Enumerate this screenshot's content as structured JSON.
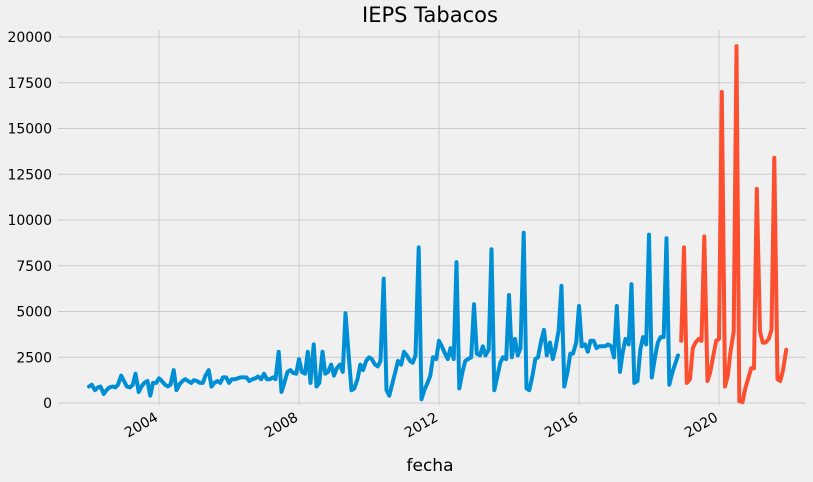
{
  "chart_data": {
    "type": "line",
    "title": "IEPS Tabacos",
    "xlabel": "fecha",
    "ylabel": "",
    "xlim": [
      2001.1,
      2021.9
    ],
    "ylim": [
      -1000,
      21000
    ],
    "x_ticks": [
      2004,
      2008,
      2012,
      2016,
      2020
    ],
    "y_ticks": [
      0,
      2500,
      5000,
      7500,
      10000,
      12500,
      15000,
      17500,
      20000
    ],
    "grid": true,
    "colors": {
      "background": "#f0f0f0",
      "grid": "#cbcbcb",
      "series_1": "#008fd5",
      "series_2": "#fc4f30"
    },
    "series": [
      {
        "name": "",
        "color": "#008fd5",
        "points": [
          [
            2002.0,
            900
          ],
          [
            2002.08,
            1000
          ],
          [
            2002.17,
            700
          ],
          [
            2002.25,
            850
          ],
          [
            2002.33,
            900
          ],
          [
            2002.42,
            500
          ],
          [
            2002.5,
            700
          ],
          [
            2002.58,
            850
          ],
          [
            2002.67,
            900
          ],
          [
            2002.75,
            850
          ],
          [
            2002.83,
            1000
          ],
          [
            2002.92,
            1500
          ],
          [
            2003.0,
            1200
          ],
          [
            2003.08,
            900
          ],
          [
            2003.17,
            850
          ],
          [
            2003.25,
            1000
          ],
          [
            2003.33,
            1600
          ],
          [
            2003.42,
            600
          ],
          [
            2003.5,
            900
          ],
          [
            2003.58,
            1100
          ],
          [
            2003.67,
            1200
          ],
          [
            2003.75,
            400
          ],
          [
            2003.83,
            1100
          ],
          [
            2003.92,
            1100
          ],
          [
            2004.0,
            1350
          ],
          [
            2004.08,
            1200
          ],
          [
            2004.17,
            1000
          ],
          [
            2004.25,
            900
          ],
          [
            2004.33,
            1000
          ],
          [
            2004.42,
            1800
          ],
          [
            2004.5,
            700
          ],
          [
            2004.58,
            1000
          ],
          [
            2004.67,
            1200
          ],
          [
            2004.75,
            1300
          ],
          [
            2004.83,
            1200
          ],
          [
            2004.92,
            1100
          ],
          [
            2005.0,
            1250
          ],
          [
            2005.08,
            1200
          ],
          [
            2005.17,
            1100
          ],
          [
            2005.25,
            1100
          ],
          [
            2005.33,
            1500
          ],
          [
            2005.42,
            1800
          ],
          [
            2005.5,
            900
          ],
          [
            2005.58,
            1100
          ],
          [
            2005.67,
            1200
          ],
          [
            2005.75,
            1100
          ],
          [
            2005.83,
            1400
          ],
          [
            2005.92,
            1400
          ],
          [
            2006.0,
            1100
          ],
          [
            2006.08,
            1300
          ],
          [
            2006.17,
            1300
          ],
          [
            2006.25,
            1350
          ],
          [
            2006.33,
            1400
          ],
          [
            2006.42,
            1400
          ],
          [
            2006.5,
            1400
          ],
          [
            2006.58,
            1200
          ],
          [
            2006.67,
            1300
          ],
          [
            2006.75,
            1350
          ],
          [
            2006.83,
            1450
          ],
          [
            2006.92,
            1300
          ],
          [
            2007.0,
            1600
          ],
          [
            2007.08,
            1300
          ],
          [
            2007.17,
            1300
          ],
          [
            2007.25,
            1400
          ],
          [
            2007.33,
            1300
          ],
          [
            2007.42,
            2800
          ],
          [
            2007.5,
            600
          ],
          [
            2007.58,
            1100
          ],
          [
            2007.67,
            1700
          ],
          [
            2007.75,
            1800
          ],
          [
            2007.83,
            1650
          ],
          [
            2007.92,
            1600
          ],
          [
            2008.0,
            2400
          ],
          [
            2008.08,
            1700
          ],
          [
            2008.17,
            1600
          ],
          [
            2008.25,
            2800
          ],
          [
            2008.33,
            1100
          ],
          [
            2008.42,
            3200
          ],
          [
            2008.5,
            900
          ],
          [
            2008.58,
            1100
          ],
          [
            2008.67,
            2800
          ],
          [
            2008.75,
            1600
          ],
          [
            2008.83,
            1700
          ],
          [
            2008.92,
            2100
          ],
          [
            2009.0,
            1500
          ],
          [
            2009.08,
            1900
          ],
          [
            2009.17,
            2100
          ],
          [
            2009.25,
            1700
          ],
          [
            2009.33,
            4900
          ],
          [
            2009.42,
            2600
          ],
          [
            2009.5,
            700
          ],
          [
            2009.58,
            800
          ],
          [
            2009.67,
            1300
          ],
          [
            2009.75,
            2100
          ],
          [
            2009.83,
            1800
          ],
          [
            2009.92,
            2300
          ],
          [
            2010.0,
            2500
          ],
          [
            2010.08,
            2400
          ],
          [
            2010.17,
            2100
          ],
          [
            2010.25,
            2000
          ],
          [
            2010.33,
            2300
          ],
          [
            2010.42,
            6800
          ],
          [
            2010.5,
            700
          ],
          [
            2010.58,
            400
          ],
          [
            2010.67,
            1100
          ],
          [
            2010.75,
            1700
          ],
          [
            2010.83,
            2300
          ],
          [
            2010.92,
            2100
          ],
          [
            2011.0,
            2800
          ],
          [
            2011.08,
            2600
          ],
          [
            2011.17,
            2300
          ],
          [
            2011.25,
            2200
          ],
          [
            2011.33,
            2600
          ],
          [
            2011.42,
            8500
          ],
          [
            2011.5,
            200
          ],
          [
            2011.58,
            700
          ],
          [
            2011.67,
            1100
          ],
          [
            2011.75,
            1500
          ],
          [
            2011.83,
            2500
          ],
          [
            2011.92,
            2400
          ],
          [
            2012.0,
            3400
          ],
          [
            2012.08,
            3100
          ],
          [
            2012.17,
            2700
          ],
          [
            2012.25,
            2400
          ],
          [
            2012.33,
            3000
          ],
          [
            2012.42,
            2400
          ],
          [
            2012.5,
            7700
          ],
          [
            2012.58,
            800
          ],
          [
            2012.67,
            1700
          ],
          [
            2012.75,
            2300
          ],
          [
            2012.83,
            2400
          ],
          [
            2012.92,
            2500
          ],
          [
            2013.0,
            5400
          ],
          [
            2013.08,
            2700
          ],
          [
            2013.17,
            2600
          ],
          [
            2013.25,
            3100
          ],
          [
            2013.33,
            2600
          ],
          [
            2013.42,
            2900
          ],
          [
            2013.5,
            8400
          ],
          [
            2013.58,
            700
          ],
          [
            2013.67,
            1500
          ],
          [
            2013.75,
            2200
          ],
          [
            2013.83,
            2500
          ],
          [
            2013.92,
            2400
          ],
          [
            2014.0,
            5900
          ],
          [
            2014.08,
            2500
          ],
          [
            2014.17,
            3500
          ],
          [
            2014.25,
            2600
          ],
          [
            2014.33,
            3000
          ],
          [
            2014.42,
            9300
          ],
          [
            2014.5,
            800
          ],
          [
            2014.58,
            700
          ],
          [
            2014.67,
            1500
          ],
          [
            2014.75,
            2400
          ],
          [
            2014.83,
            2500
          ],
          [
            2014.92,
            3400
          ],
          [
            2015.0,
            4000
          ],
          [
            2015.08,
            2600
          ],
          [
            2015.17,
            3300
          ],
          [
            2015.25,
            2400
          ],
          [
            2015.33,
            3000
          ],
          [
            2015.42,
            4000
          ],
          [
            2015.5,
            6400
          ],
          [
            2015.58,
            900
          ],
          [
            2015.67,
            1700
          ],
          [
            2015.75,
            2700
          ],
          [
            2015.83,
            2700
          ],
          [
            2015.92,
            3300
          ],
          [
            2016.0,
            5300
          ],
          [
            2016.08,
            3100
          ],
          [
            2016.17,
            3200
          ],
          [
            2016.25,
            2800
          ],
          [
            2016.33,
            3400
          ],
          [
            2016.42,
            3400
          ],
          [
            2016.5,
            3000
          ],
          [
            2016.58,
            3100
          ],
          [
            2016.67,
            3100
          ],
          [
            2016.75,
            3100
          ],
          [
            2016.83,
            3200
          ],
          [
            2016.92,
            3100
          ],
          [
            2017.0,
            2500
          ],
          [
            2017.08,
            5300
          ],
          [
            2017.17,
            1700
          ],
          [
            2017.25,
            2800
          ],
          [
            2017.33,
            3500
          ],
          [
            2017.42,
            3200
          ],
          [
            2017.5,
            6500
          ],
          [
            2017.58,
            1100
          ],
          [
            2017.67,
            1200
          ],
          [
            2017.75,
            2900
          ],
          [
            2017.83,
            3600
          ],
          [
            2017.92,
            3200
          ],
          [
            2018.0,
            9200
          ],
          [
            2018.08,
            1400
          ],
          [
            2018.17,
            2500
          ],
          [
            2018.25,
            3300
          ],
          [
            2018.33,
            3600
          ],
          [
            2018.42,
            3600
          ],
          [
            2018.5,
            9000
          ],
          [
            2018.58,
            1000
          ],
          [
            2018.67,
            1700
          ],
          [
            2018.83,
            2600
          ]
        ]
      },
      {
        "name": "",
        "color": "#fc4f30",
        "points": [
          [
            2018.92,
            3400
          ],
          [
            2019.0,
            8500
          ],
          [
            2019.08,
            1100
          ],
          [
            2019.17,
            1300
          ],
          [
            2019.25,
            3000
          ],
          [
            2019.33,
            3300
          ],
          [
            2019.42,
            3500
          ],
          [
            2019.5,
            3400
          ],
          [
            2019.58,
            9100
          ],
          [
            2019.67,
            1200
          ],
          [
            2019.75,
            1700
          ],
          [
            2019.83,
            2500
          ],
          [
            2019.92,
            3400
          ],
          [
            2020.0,
            3500
          ],
          [
            2020.08,
            17000
          ],
          [
            2020.17,
            900
          ],
          [
            2020.25,
            1500
          ],
          [
            2020.33,
            2800
          ],
          [
            2020.42,
            3900
          ],
          [
            2020.5,
            19500
          ],
          [
            2020.58,
            100
          ],
          [
            2020.67,
            50
          ],
          [
            2020.75,
            800
          ],
          [
            2020.83,
            1300
          ],
          [
            2020.92,
            1900
          ],
          [
            2021.0,
            1900
          ],
          [
            2021.08,
            11700
          ],
          [
            2021.17,
            3900
          ],
          [
            2021.25,
            3300
          ],
          [
            2021.33,
            3300
          ],
          [
            2021.42,
            3500
          ],
          [
            2021.5,
            4000
          ],
          [
            2021.58,
            13400
          ],
          [
            2021.67,
            1300
          ],
          [
            2021.75,
            1200
          ],
          [
            2021.83,
            1800
          ],
          [
            2021.92,
            2900
          ]
        ]
      }
    ]
  }
}
